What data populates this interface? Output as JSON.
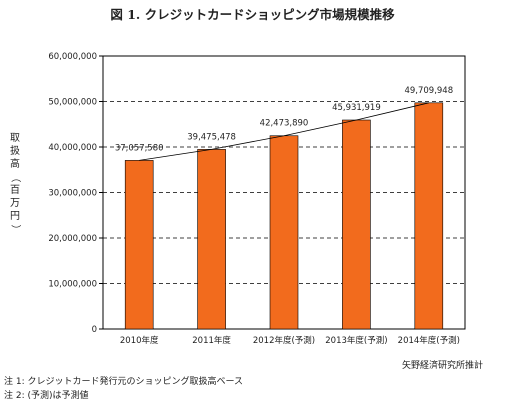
{
  "chart_data": {
    "type": "bar",
    "title": "図 1. クレジットカードショッピング市場規模推移",
    "ylabel": "取扱高（百万円）",
    "ylim": [
      0,
      60000000
    ],
    "yticks": [
      0,
      10000000,
      20000000,
      30000000,
      40000000,
      50000000,
      60000000
    ],
    "ytick_labels": [
      "0",
      "10,000,000",
      "20,000,000",
      "30,000,000",
      "40,000,000",
      "50,000,000",
      "60,000,000"
    ],
    "grid": "horizontal-dashed",
    "categories": [
      "2010年度",
      "2011年度",
      "2012年度(予測)",
      "2013年度(予測)",
      "2014年度(予測)"
    ],
    "values": [
      37057580,
      39475478,
      42473890,
      45931919,
      49709948
    ],
    "value_labels": [
      "37,057,580",
      "39,475,478",
      "42,473,890",
      "45,931,919",
      "49,709,948"
    ],
    "bar_color": "#f26b1d",
    "trend_line": true
  },
  "source": "矢野経済研究所推計",
  "notes": [
    "注 1:  クレジットカード発行元のショッピング取扱高ベース",
    "注 2:  (予測)は予測値"
  ]
}
